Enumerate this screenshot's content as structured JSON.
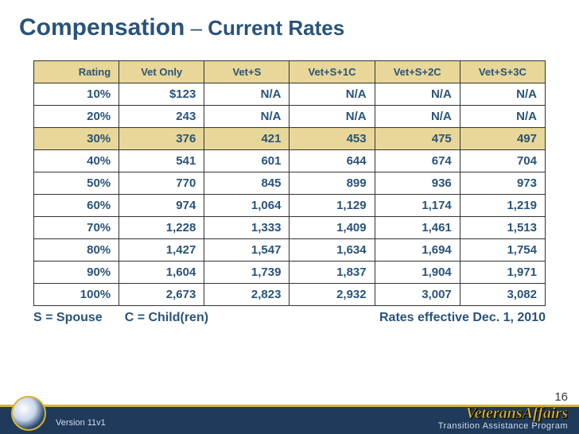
{
  "title_main": "Compensation",
  "title_sep": " – ",
  "title_sub": "Current Rates",
  "table": {
    "columns": [
      "Rating",
      "Vet Only",
      "Vet+S",
      "Vet+S+1C",
      "Vet+S+2C",
      "Vet+S+3C"
    ],
    "highlight_row_index": 2,
    "rows": [
      [
        "10%",
        "$123",
        "N/A",
        "N/A",
        "N/A",
        "N/A"
      ],
      [
        "20%",
        "243",
        "N/A",
        "N/A",
        "N/A",
        "N/A"
      ],
      [
        "30%",
        "376",
        "421",
        "453",
        "475",
        "497"
      ],
      [
        "40%",
        "541",
        "601",
        "644",
        "674",
        "704"
      ],
      [
        "50%",
        "770",
        "845",
        "899",
        "936",
        "973"
      ],
      [
        "60%",
        "974",
        "1,064",
        "1,129",
        "1,174",
        "1,219"
      ],
      [
        "70%",
        "1,228",
        "1,333",
        "1,409",
        "1,461",
        "1,513"
      ],
      [
        "80%",
        "1,427",
        "1,547",
        "1,634",
        "1,694",
        "1,754"
      ],
      [
        "90%",
        "1,604",
        "1,739",
        "1,837",
        "1,904",
        "1,971"
      ],
      [
        "100%",
        "2,673",
        "2,823",
        "2,932",
        "3,007",
        "3,082"
      ]
    ]
  },
  "legend": {
    "spouse": "S = Spouse",
    "child": "C = Child(ren)",
    "effective": "Rates effective Dec. 1, 2010"
  },
  "footer": {
    "version": "Version 11v1",
    "brand": "VeteransAffairs",
    "program": "Transition  Assistance Program",
    "page": "16"
  },
  "colors": {
    "heading": "#29537a",
    "header_bg": "#e8d798",
    "border": "#333333",
    "footer_bg": "#1f3a5a",
    "gold": "#d9b531"
  }
}
